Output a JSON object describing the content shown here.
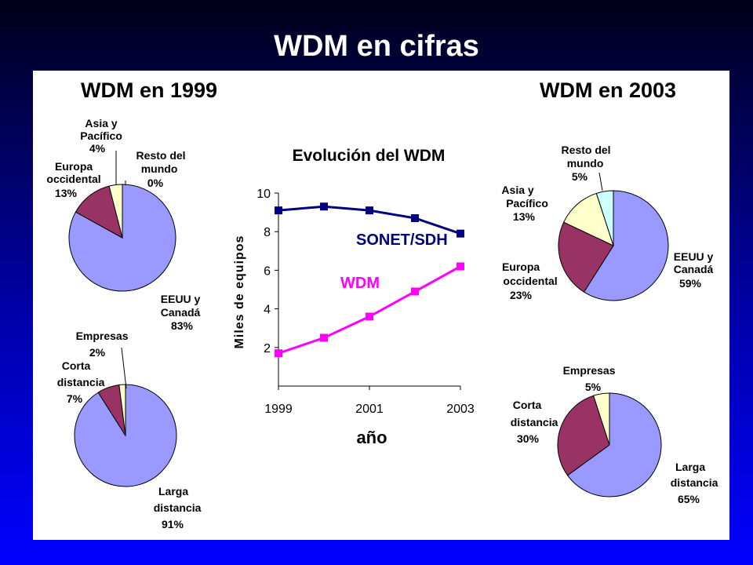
{
  "title": "WDM en cifras",
  "chart_data": [
    {
      "type": "pie",
      "title": "WDM en 1999",
      "categories": [
        "EEUU y Canadá",
        "Europa occidental",
        "Asia y Pacífico",
        "Resto del mundo"
      ],
      "values": [
        83,
        13,
        4,
        0
      ],
      "labels": [
        {
          "lines": [
            "EEUU y",
            "Canadá",
            "83%"
          ]
        },
        {
          "lines": [
            "Europa",
            "occidental",
            "13%"
          ]
        },
        {
          "lines": [
            "Asia y",
            "Pacífico",
            "4%"
          ]
        },
        {
          "lines": [
            "Resto del",
            "mundo",
            "0%"
          ]
        }
      ],
      "colors": [
        "#9999ff",
        "#993366",
        "#ffffcc",
        "#ccffff"
      ]
    },
    {
      "type": "pie",
      "title": "",
      "categories": [
        "Larga distancia",
        "Corta distancia",
        "Empresas"
      ],
      "values": [
        91,
        7,
        2
      ],
      "labels": [
        {
          "lines": [
            "Larga",
            "distancia",
            "91%"
          ]
        },
        {
          "lines": [
            "Corta",
            "distancia",
            "7%"
          ]
        },
        {
          "lines": [
            "Empresas",
            "2%"
          ]
        }
      ],
      "colors": [
        "#9999ff",
        "#993366",
        "#ffffcc"
      ]
    },
    {
      "type": "line",
      "title": "Evolución del WDM",
      "xlabel": "año",
      "ylabel": "Miles de equipos",
      "x": [
        1999,
        2000,
        2001,
        2002,
        2003
      ],
      "xticks": [
        1999,
        2001,
        2003
      ],
      "yticks": [
        2,
        4,
        6,
        8,
        10
      ],
      "xlim": [
        1999,
        2003
      ],
      "ylim": [
        0,
        10
      ],
      "series": [
        {
          "name": "SONET/SDH",
          "values": [
            9.1,
            9.3,
            9.1,
            8.7,
            7.9
          ],
          "color": "#000080"
        },
        {
          "name": "WDM",
          "values": [
            1.7,
            2.5,
            3.6,
            4.9,
            6.2
          ],
          "color": "#ff00ff"
        }
      ]
    },
    {
      "type": "pie",
      "title": "WDM en 2003",
      "categories": [
        "EEUU y Canadá",
        "Europa occidental",
        "Asia y Pacífico",
        "Resto del mundo"
      ],
      "values": [
        59,
        23,
        13,
        5
      ],
      "labels": [
        {
          "lines": [
            "EEUU y",
            "Canadá",
            "59%"
          ]
        },
        {
          "lines": [
            "Europa",
            "occidental",
            "23%"
          ]
        },
        {
          "lines": [
            "Asia y",
            "Pacífico",
            "13%"
          ]
        },
        {
          "lines": [
            "Resto del",
            "mundo",
            "5%"
          ]
        }
      ],
      "colors": [
        "#9999ff",
        "#993366",
        "#ffffcc",
        "#ccffff"
      ]
    },
    {
      "type": "pie",
      "title": "",
      "categories": [
        "Larga distancia",
        "Corta distancia",
        "Empresas"
      ],
      "values": [
        65,
        30,
        5
      ],
      "labels": [
        {
          "lines": [
            "Larga",
            "distancia",
            "65%"
          ]
        },
        {
          "lines": [
            "Corta",
            "distancia",
            "30%"
          ]
        },
        {
          "lines": [
            "Empresas",
            "5%"
          ]
        }
      ],
      "colors": [
        "#9999ff",
        "#993366",
        "#ffffcc"
      ]
    }
  ]
}
